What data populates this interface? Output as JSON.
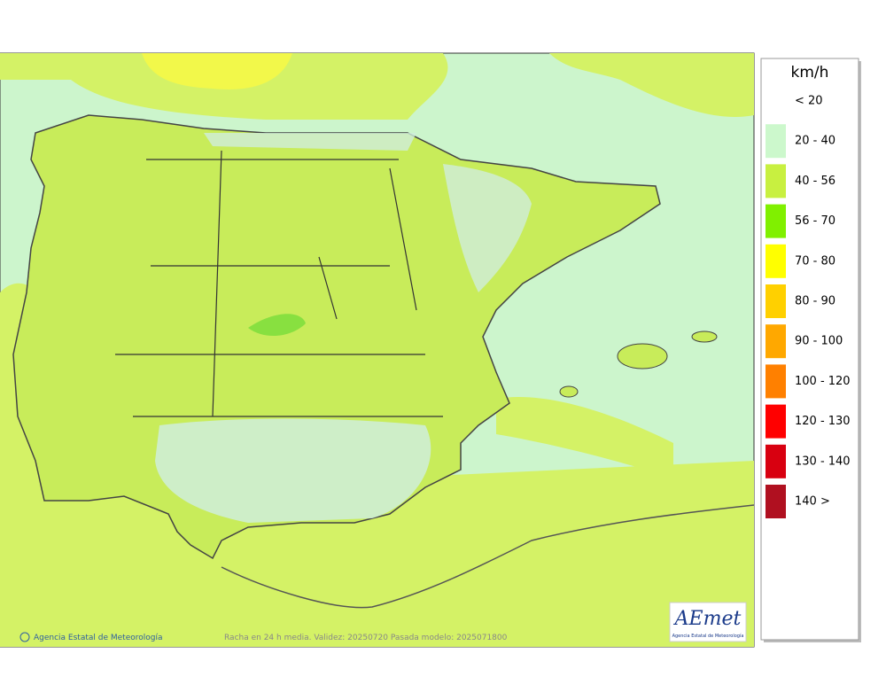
{
  "legend": {
    "title": "km/h",
    "items": [
      {
        "label": "< 20"
      },
      {
        "label": "20 - 40",
        "color": "#ccf8cc"
      },
      {
        "label": "40 - 56",
        "color": "#c8f040"
      },
      {
        "label": "56 - 70",
        "color": "#80f000"
      },
      {
        "label": "70 - 80",
        "color": "#ffff00"
      },
      {
        "label": "80 - 90",
        "color": "#ffd000"
      },
      {
        "label": "90 - 100",
        "color": "#ffa800"
      },
      {
        "label": "100 - 120",
        "color": "#ff8000"
      },
      {
        "label": "120 - 130",
        "color": "#ff0000"
      },
      {
        "label": "130 - 140",
        "color": "#d80010"
      },
      {
        "label": "140 >",
        "color": "#b01020"
      }
    ]
  },
  "footer": {
    "credit": "Agencia Estatal de Meteorología",
    "caption": "Racha en 24 h media. Validez: 20250720 Pasada modelo: 2025071800"
  },
  "logo": {
    "name": "AEmet",
    "subtitle": "Agencia Estatal de Meteorología"
  }
}
